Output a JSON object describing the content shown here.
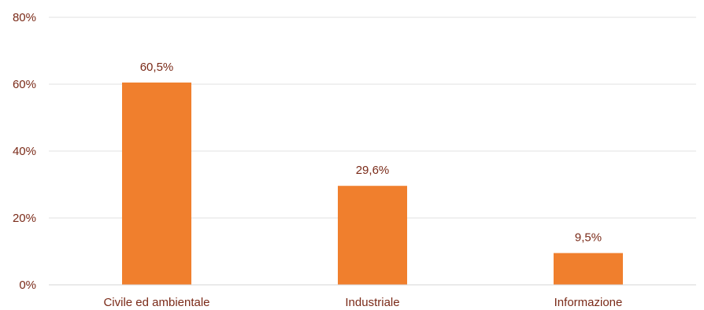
{
  "chart_data": {
    "type": "bar",
    "categories": [
      "Civile ed ambientale",
      "Industriale",
      "Informazione"
    ],
    "values": [
      60.5,
      29.6,
      9.5
    ],
    "data_labels": [
      "60,5%",
      "29,6%",
      "9,5%"
    ],
    "yticks": [
      0,
      20,
      40,
      60,
      80
    ],
    "ytick_labels": [
      "0%",
      "20%",
      "40%",
      "60%",
      "80%"
    ],
    "ylim": [
      0,
      80
    ],
    "grid": true,
    "bar_color": "#f07f2d",
    "text_color": "#7a2a18"
  }
}
